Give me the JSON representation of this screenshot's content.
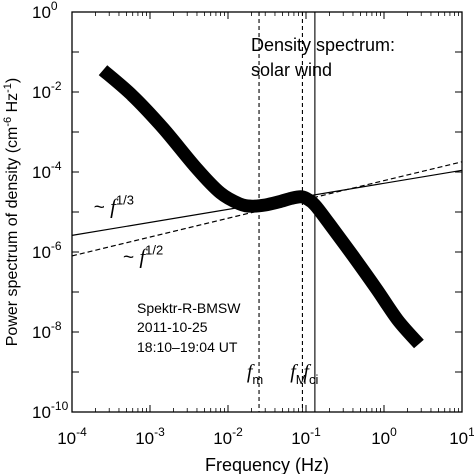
{
  "chart_data": {
    "type": "line",
    "xscale": "log",
    "yscale": "log",
    "xlim": [
      0.0001,
      10
    ],
    "ylim": [
      1e-10,
      1
    ],
    "xlabel": "Frequency  (Hz)",
    "ylabel": "Power spectrum of density (cm",
    "ylabel_exp": "-6",
    "ylabel_mid": " Hz",
    "ylabel_exp2": "-1",
    "ylabel_end": ")",
    "x_ticks": [
      {
        "base": "10",
        "exp": "-4",
        "value": 0.0001
      },
      {
        "base": "10",
        "exp": "-3",
        "value": 0.001
      },
      {
        "base": "10",
        "exp": "-2",
        "value": 0.01
      },
      {
        "base": "10",
        "exp": "-1",
        "value": 0.1
      },
      {
        "base": "10",
        "exp": "0",
        "value": 1
      },
      {
        "base": "10",
        "exp": "1",
        "value": 10
      }
    ],
    "y_ticks": [
      {
        "base": "10",
        "exp": "0",
        "value": 1
      },
      {
        "base": "10",
        "exp": "-2",
        "value": 0.01
      },
      {
        "base": "10",
        "exp": "-4",
        "value": 0.0001
      },
      {
        "base": "10",
        "exp": "-6",
        "value": 1e-06
      },
      {
        "base": "10",
        "exp": "-8",
        "value": 1e-08
      },
      {
        "base": "10",
        "exp": "-10",
        "value": 1e-10
      }
    ],
    "title_lines": [
      "Density spectrum:",
      "solar wind"
    ],
    "info_lines": [
      "Spektr-R-BMSW",
      "2011-10-25",
      "18:10–19:04 UT"
    ],
    "series": [
      {
        "style": "thick-solid",
        "x": [
          0.00025,
          0.0006,
          0.0015,
          0.004,
          0.008,
          0.014,
          0.02,
          0.03,
          0.045,
          0.065,
          0.085,
          0.1,
          0.13,
          0.2,
          0.4,
          0.8,
          1.5,
          2.8
        ],
        "y": [
          0.035,
          0.008,
          0.0012,
          0.00012,
          3e-05,
          1.6e-05,
          1.4e-05,
          1.5e-05,
          1.8e-05,
          2.2e-05,
          2.4e-05,
          2.2e-05,
          1.5e-05,
          5e-06,
          8e-07,
          1.2e-07,
          2e-08,
          5e-09
        ]
      },
      {
        "style": "thin-solid",
        "x": [
          0.0001,
          10
        ],
        "y": [
          2.6e-06,
          0.00011
        ]
      },
      {
        "style": "dashed",
        "x": [
          0.0001,
          10
        ],
        "y": [
          8e-07,
          0.00018
        ]
      }
    ],
    "slope_labels": [
      {
        "prefix": "~ ",
        "var": "f",
        "exp": "1/3",
        "x": 0.00019,
        "y": 9.3e-06
      },
      {
        "prefix": "~ ",
        "var": "f",
        "exp": "1/2",
        "x": 0.00045,
        "y": 5.2e-07
      }
    ],
    "vlines": [
      {
        "x": 0.025,
        "style": "dashed",
        "var": "f",
        "sub": "m"
      },
      {
        "x": 0.09,
        "style": "dashed",
        "var": "f",
        "sub": "M"
      },
      {
        "x": 0.13,
        "style": "solid",
        "var": "f",
        "sub": "ci"
      }
    ]
  }
}
